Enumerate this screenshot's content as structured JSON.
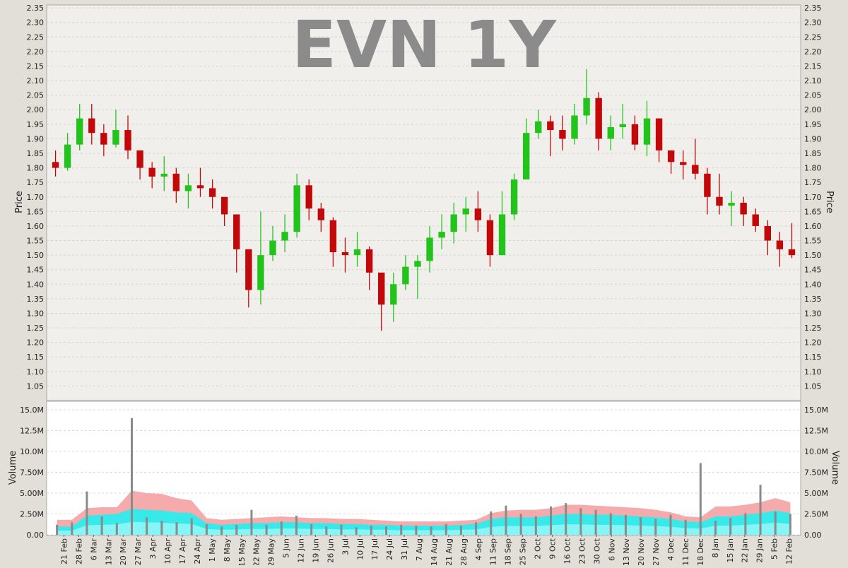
{
  "chart_data": [
    {
      "type": "candlestick",
      "title": "EVN 1Y",
      "ylabel": "Price",
      "ylim": [
        1.0,
        2.36
      ],
      "y_ticks": [
        "1.05",
        "1.10",
        "1.15",
        "1.20",
        "1.25",
        "1.30",
        "1.35",
        "1.40",
        "1.45",
        "1.50",
        "1.55",
        "1.60",
        "1.65",
        "1.70",
        "1.75",
        "1.80",
        "1.85",
        "1.90",
        "1.95",
        "2.00",
        "2.05",
        "2.10",
        "2.15",
        "2.20",
        "2.25",
        "2.30",
        "2.35"
      ],
      "grid": true,
      "colors": {
        "up": "#22c41c",
        "down": "#c20808",
        "flat": "#111111"
      },
      "series": [
        {
          "values": [
            [
              1.82,
              1.8,
              1.86,
              1.77
            ],
            [
              1.8,
              1.88,
              1.92,
              1.79
            ],
            [
              1.88,
              1.97,
              2.02,
              1.86
            ],
            [
              1.97,
              1.92,
              2.02,
              1.88
            ],
            [
              1.92,
              1.88,
              1.95,
              1.84
            ],
            [
              1.88,
              1.93,
              2.0,
              1.87
            ],
            [
              1.93,
              1.86,
              1.98,
              1.83
            ],
            [
              1.86,
              1.8,
              1.86,
              1.76
            ],
            [
              1.8,
              1.77,
              1.82,
              1.73
            ],
            [
              1.77,
              1.78,
              1.84,
              1.72
            ],
            [
              1.78,
              1.72,
              1.8,
              1.68
            ],
            [
              1.72,
              1.74,
              1.78,
              1.66
            ],
            [
              1.74,
              1.73,
              1.8,
              1.7
            ],
            [
              1.73,
              1.7,
              1.76,
              1.66
            ],
            [
              1.7,
              1.64,
              1.7,
              1.6
            ],
            [
              1.64,
              1.52,
              1.64,
              1.44
            ],
            [
              1.52,
              1.38,
              1.52,
              1.32
            ],
            [
              1.38,
              1.5,
              1.65,
              1.33
            ],
            [
              1.5,
              1.55,
              1.6,
              1.48
            ],
            [
              1.55,
              1.58,
              1.64,
              1.51
            ],
            [
              1.58,
              1.74,
              1.78,
              1.56
            ],
            [
              1.74,
              1.66,
              1.76,
              1.62
            ],
            [
              1.66,
              1.62,
              1.68,
              1.58
            ],
            [
              1.62,
              1.51,
              1.63,
              1.46
            ],
            [
              1.51,
              1.5,
              1.56,
              1.44
            ],
            [
              1.5,
              1.52,
              1.58,
              1.46
            ],
            [
              1.52,
              1.44,
              1.53,
              1.38
            ],
            [
              1.44,
              1.33,
              1.44,
              1.24
            ],
            [
              1.33,
              1.4,
              1.44,
              1.27
            ],
            [
              1.4,
              1.46,
              1.5,
              1.38
            ],
            [
              1.46,
              1.48,
              1.5,
              1.35
            ],
            [
              1.48,
              1.56,
              1.6,
              1.44
            ],
            [
              1.56,
              1.58,
              1.64,
              1.52
            ],
            [
              1.58,
              1.64,
              1.68,
              1.54
            ],
            [
              1.64,
              1.66,
              1.7,
              1.58
            ],
            [
              1.66,
              1.62,
              1.72,
              1.58
            ],
            [
              1.62,
              1.5,
              1.64,
              1.46
            ],
            [
              1.5,
              1.64,
              1.72,
              1.5
            ],
            [
              1.64,
              1.76,
              1.78,
              1.62
            ],
            [
              1.76,
              1.92,
              1.97,
              1.76
            ],
            [
              1.92,
              1.96,
              2.0,
              1.9
            ],
            [
              1.96,
              1.93,
              1.98,
              1.84
            ],
            [
              1.93,
              1.9,
              1.98,
              1.86
            ],
            [
              1.9,
              1.98,
              2.02,
              1.88
            ],
            [
              1.98,
              2.04,
              2.14,
              1.95
            ],
            [
              2.04,
              1.9,
              2.06,
              1.86
            ],
            [
              1.9,
              1.94,
              1.98,
              1.86
            ],
            [
              1.94,
              1.95,
              2.02,
              1.9
            ],
            [
              1.95,
              1.88,
              1.98,
              1.86
            ],
            [
              1.88,
              1.97,
              2.03,
              1.84
            ],
            [
              1.97,
              1.86,
              1.97,
              1.82
            ],
            [
              1.86,
              1.82,
              1.86,
              1.78
            ],
            [
              1.82,
              1.81,
              1.86,
              1.76
            ],
            [
              1.81,
              1.78,
              1.9,
              1.76
            ],
            [
              1.78,
              1.7,
              1.8,
              1.64
            ],
            [
              1.7,
              1.67,
              1.78,
              1.64
            ],
            [
              1.67,
              1.68,
              1.72,
              1.6
            ],
            [
              1.68,
              1.64,
              1.7,
              1.6
            ],
            [
              1.64,
              1.6,
              1.66,
              1.58
            ],
            [
              1.6,
              1.55,
              1.62,
              1.5
            ],
            [
              1.55,
              1.52,
              1.58,
              1.46
            ],
            [
              1.52,
              1.5,
              1.61,
              1.49
            ]
          ]
        }
      ]
    },
    {
      "type": "bar",
      "ylabel": "Volume",
      "ylim": [
        0,
        15.0
      ],
      "y_ticks": [
        "0.00",
        "2.50M",
        "5.00M",
        "7.50M",
        "10.0M",
        "12.5M",
        "15.0M"
      ],
      "grid": true,
      "x_ticks": [
        "21 Feb",
        "28 Feb",
        "6 Mar",
        "13 Mar",
        "20 Mar",
        "27 Mar",
        "3 Apr",
        "10 Apr",
        "17 Apr",
        "24 Apr",
        "1 May",
        "8 May",
        "15 May",
        "22 May",
        "29 May",
        "5 Jun",
        "12 Jun",
        "19 Jun",
        "26 Jun",
        "3 Jul",
        "10 Jul",
        "17 Jul",
        "24 Jul",
        "31 Jul",
        "7 Aug",
        "14 Aug",
        "21 Aug",
        "28 Aug",
        "4 Sep",
        "11 Sep",
        "18 Sep",
        "25 Sep",
        "2 Oct",
        "9 Oct",
        "16 Oct",
        "23 Oct",
        "30 Oct",
        "6 Nov",
        "13 Nov",
        "20 Nov",
        "27 Nov",
        "4 Dec",
        "11 Dec",
        "18 Dec",
        "8 Jan",
        "15 Jan",
        "22 Jan",
        "29 Jan",
        "5 Feb",
        "12 Feb"
      ],
      "colors": {
        "bar": "#8a8a8a",
        "band_upper": "#f4a7a8",
        "band_mid": "#22f0f0",
        "band_lower": "#8ef6f6"
      },
      "series": [
        {
          "values": [
            1.2,
            1.5,
            5.2,
            2.2,
            1.4,
            14.0,
            2.1,
            1.7,
            1.5,
            2.0,
            1.3,
            1.0,
            1.2,
            3.0,
            1.2,
            1.6,
            2.3,
            1.3,
            1.0,
            1.2,
            0.9,
            1.1,
            1.0,
            1.2,
            1.1,
            1.0,
            1.3,
            1.1,
            1.5,
            2.8,
            3.5,
            2.5,
            2.2,
            3.4,
            3.8,
            3.2,
            3.0,
            2.6,
            2.4,
            2.1,
            1.9,
            2.4,
            1.8,
            8.6,
            1.7,
            2.0,
            2.6,
            6.0,
            2.8,
            2.5
          ]
        },
        {
          "values": [
            1.8,
            1.8,
            3.2,
            3.3,
            3.3,
            5.3,
            5.0,
            4.9,
            4.4,
            4.1,
            2.0,
            1.8,
            1.9,
            2.0,
            2.1,
            2.2,
            2.1,
            2.0,
            2.0,
            1.9,
            1.9,
            1.8,
            1.7,
            1.6,
            1.6,
            1.6,
            1.6,
            1.7,
            1.8,
            2.6,
            2.9,
            3.0,
            3.0,
            3.2,
            3.6,
            3.6,
            3.5,
            3.4,
            3.3,
            3.2,
            3.0,
            2.7,
            2.2,
            2.1,
            3.4,
            3.4,
            3.6,
            3.9,
            4.4,
            3.9
          ]
        },
        {
          "values": [
            1.0,
            1.0,
            2.3,
            2.4,
            2.5,
            3.1,
            3.0,
            2.9,
            2.7,
            2.6,
            1.4,
            1.2,
            1.3,
            1.4,
            1.4,
            1.5,
            1.5,
            1.4,
            1.4,
            1.3,
            1.3,
            1.2,
            1.2,
            1.1,
            1.1,
            1.1,
            1.1,
            1.2,
            1.3,
            1.9,
            2.1,
            2.1,
            2.1,
            2.3,
            2.5,
            2.5,
            2.4,
            2.4,
            2.3,
            2.2,
            2.1,
            1.9,
            1.6,
            1.5,
            2.2,
            2.2,
            2.4,
            2.6,
            2.9,
            2.6
          ]
        }
      ]
    }
  ]
}
